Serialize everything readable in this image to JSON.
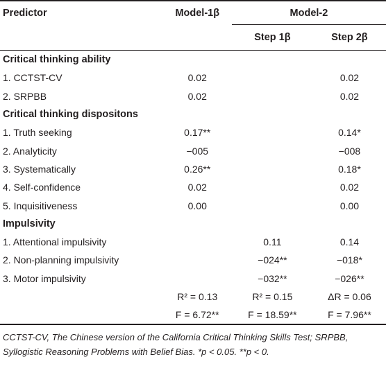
{
  "table": {
    "header": {
      "predictor": "Predictor",
      "model1": "Model-1β",
      "model2": "Model-2",
      "step1": "Step 1β",
      "step2": "Step 2β"
    },
    "sections": [
      {
        "title": "Critical thinking ability",
        "rows": [
          {
            "label": "1. CCTST-CV",
            "m1": "0.02",
            "s1": "",
            "s2": "0.02"
          },
          {
            "label": "2. SRPBB",
            "m1": "0.02",
            "s1": "",
            "s2": "0.02"
          }
        ]
      },
      {
        "title": "Critical thinking dispositons",
        "rows": [
          {
            "label": "1. Truth seeking",
            "m1": "0.17**",
            "s1": "",
            "s2": "0.14*"
          },
          {
            "label": "2. Analyticity",
            "m1": "−005",
            "s1": "",
            "s2": "−008"
          },
          {
            "label": "3. Systematically",
            "m1": "0.26**",
            "s1": "",
            "s2": "0.18*"
          },
          {
            "label": "4. Self-confidence",
            "m1": "0.02",
            "s1": "",
            "s2": "0.02"
          },
          {
            "label": "5. Inquisitiveness",
            "m1": "0.00",
            "s1": "",
            "s2": "0.00"
          }
        ]
      },
      {
        "title": "Impulsivity",
        "rows": [
          {
            "label": "1. Attentional impulsivity",
            "m1": "",
            "s1": "0.11",
            "s2": "0.14"
          },
          {
            "label": "2. Non-planning impulsivity",
            "m1": "",
            "s1": "−024**",
            "s2": "−018*"
          },
          {
            "label": "3. Motor impulsivity",
            "m1": "",
            "s1": "−032**",
            "s2": "−026**"
          }
        ]
      }
    ],
    "stats": [
      {
        "label": "",
        "m1": "R² = 0.13",
        "s1": "R² = 0.15",
        "s2": "ΔR = 0.06"
      },
      {
        "label": "",
        "m1": "F = 6.72**",
        "s1": "F = 18.59**",
        "s2": "F = 7.96**"
      }
    ]
  },
  "footnote": "CCTST-CV, The Chinese version of the California Critical Thinking Skills Test; SRPBB, Syllogistic Reasoning Problems with Belief Bias. *p < 0.05. **p < 0."
}
